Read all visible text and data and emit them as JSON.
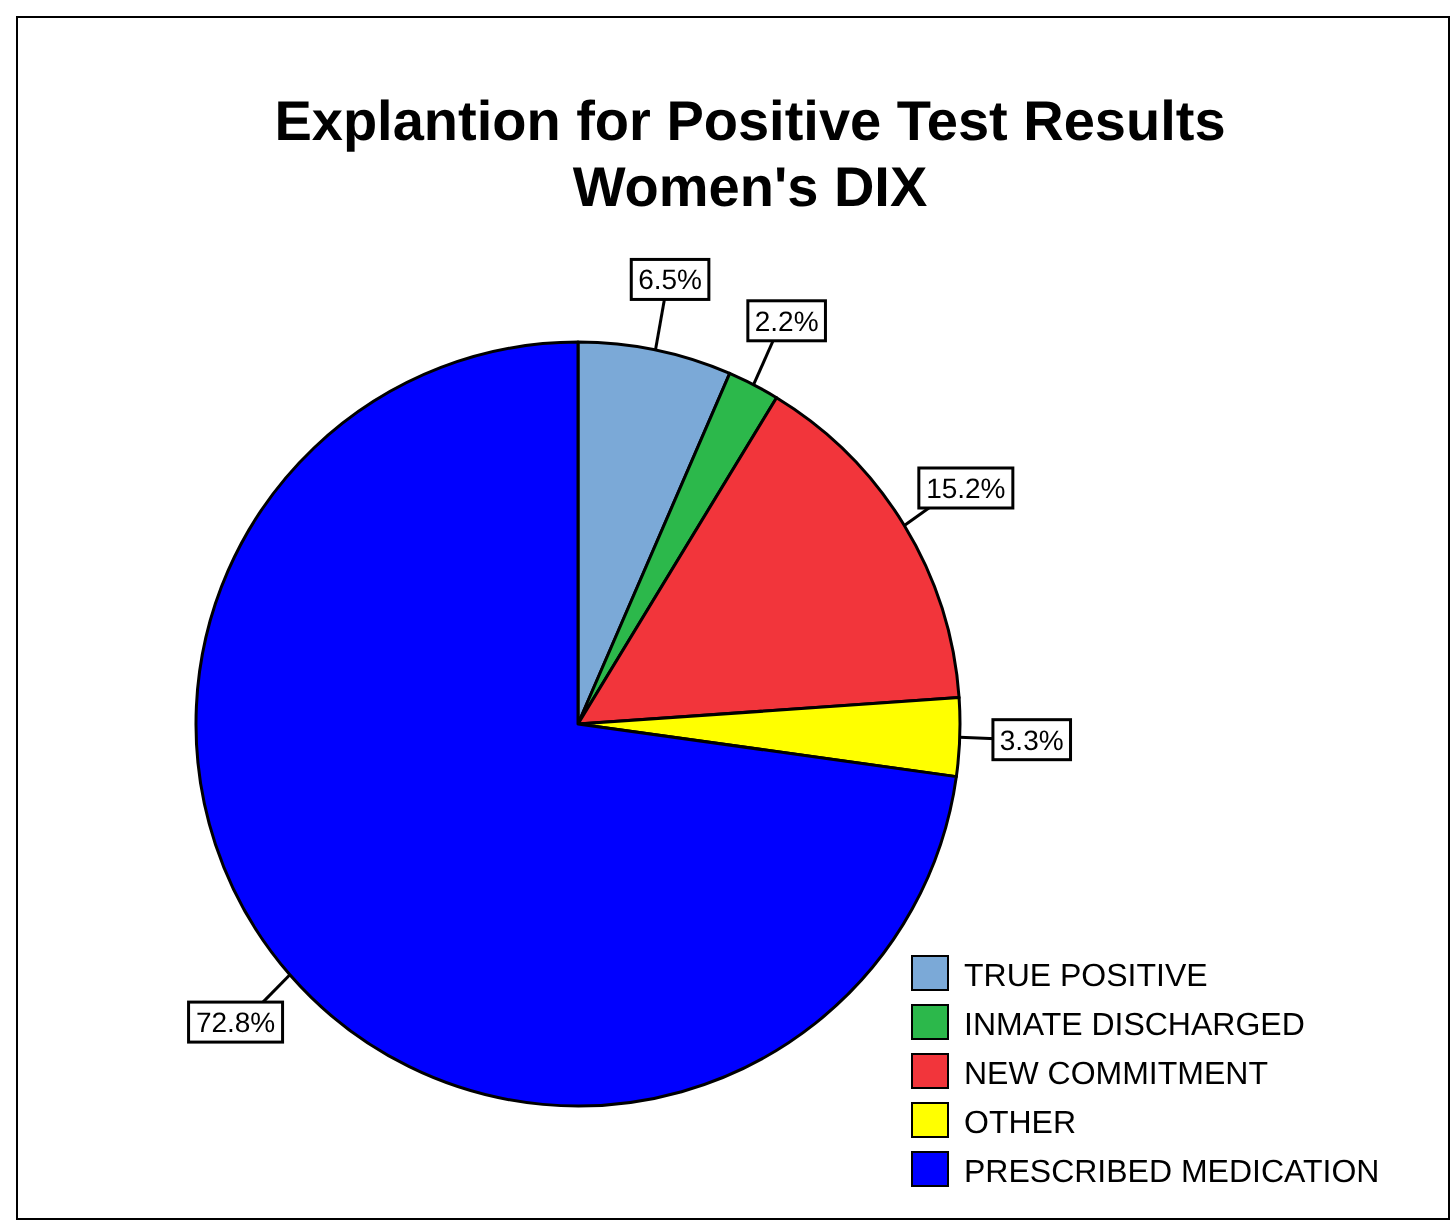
{
  "chart_data": {
    "type": "pie",
    "title": "Explantion for Positive Test Results\nWomen's DIX",
    "categories": [
      "TRUE POSITIVE",
      "INMATE DISCHARGED",
      "NEW COMMITMENT",
      "OTHER",
      "PRESCRIBED MEDICATION"
    ],
    "values": [
      6.5,
      2.2,
      15.2,
      3.3,
      72.8
    ],
    "colors": [
      "#7ba9d7",
      "#2cb84b",
      "#f2353b",
      "#ffff00",
      "#0000ff"
    ],
    "value_labels": [
      "6.5%",
      "2.2%",
      "15.2%",
      "3.3%",
      "72.8%"
    ],
    "legend": "bottom right"
  }
}
